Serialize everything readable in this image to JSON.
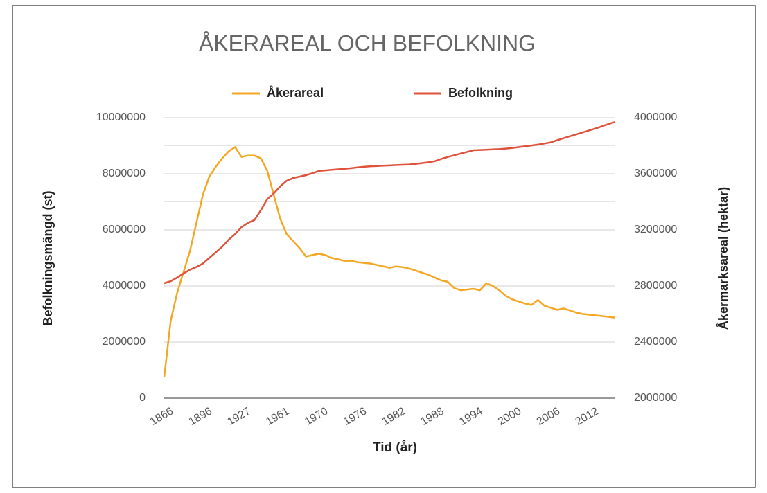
{
  "chart_data": {
    "type": "line",
    "title": "ÅKERAREAL OCH BEFOLKNING",
    "x_label": "Tid (år)",
    "y_label": "Befolkningsmängd (st)",
    "y2_label": "Åkermarksareal (hektar)",
    "legend": "top",
    "grid": true,
    "categories": [
      "1866",
      null,
      null,
      null,
      null,
      null,
      "1896",
      null,
      null,
      null,
      null,
      null,
      "1927",
      null,
      null,
      null,
      null,
      null,
      "1961",
      null,
      null,
      null,
      null,
      null,
      "1970",
      null,
      null,
      null,
      null,
      null,
      "1976",
      null,
      null,
      null,
      null,
      null,
      "1982",
      null,
      null,
      null,
      null,
      null,
      "1988",
      null,
      null,
      null,
      null,
      null,
      "1994",
      null,
      null,
      null,
      null,
      null,
      "2000",
      null,
      null,
      null,
      null,
      null,
      "2006",
      null,
      null,
      null,
      null,
      null,
      "2012",
      null,
      null,
      null,
      null
    ],
    "ylim": [
      0,
      10000000
    ],
    "yticks": [
      0,
      2000000,
      4000000,
      6000000,
      8000000,
      10000000
    ],
    "y2lim": [
      2000000,
      4000000
    ],
    "y2ticks": [
      2000000,
      2400000,
      2800000,
      3200000,
      3600000,
      4000000
    ],
    "series": [
      {
        "name": "Åkerareal",
        "color": "#f5a623",
        "axis": "y2",
        "values": [
          2150000,
          2550000,
          2750000,
          2900000,
          3050000,
          3250000,
          3450000,
          3580000,
          3650000,
          3710000,
          3760000,
          3790000,
          3720000,
          3730000,
          3730000,
          3710000,
          3620000,
          3450000,
          3280000,
          3170000,
          3120000,
          3070000,
          3010000,
          3020000,
          3030000,
          3020000,
          3000000,
          2990000,
          2980000,
          2980000,
          2970000,
          2965000,
          2960000,
          2950000,
          2940000,
          2930000,
          2940000,
          2935000,
          2925000,
          2910000,
          2895000,
          2880000,
          2860000,
          2840000,
          2830000,
          2785000,
          2770000,
          2775000,
          2780000,
          2770000,
          2820000,
          2800000,
          2770000,
          2730000,
          2705000,
          2690000,
          2675000,
          2665000,
          2700000,
          2660000,
          2645000,
          2630000,
          2640000,
          2625000,
          2610000,
          2600000,
          2595000,
          2590000,
          2585000,
          2580000,
          2575000
        ]
      },
      {
        "name": "Befolkning",
        "color": "#e0513a",
        "values": [
          4100000,
          4170000,
          4300000,
          4450000,
          4580000,
          4680000,
          4800000,
          5000000,
          5200000,
          5400000,
          5650000,
          5850000,
          6100000,
          6250000,
          6350000,
          6700000,
          7100000,
          7300000,
          7550000,
          7750000,
          7850000,
          7900000,
          7950000,
          8020000,
          8100000,
          8120000,
          8140000,
          8160000,
          8180000,
          8200000,
          8230000,
          8250000,
          8270000,
          8280000,
          8290000,
          8300000,
          8310000,
          8320000,
          8330000,
          8350000,
          8380000,
          8410000,
          8450000,
          8530000,
          8600000,
          8660000,
          8720000,
          8780000,
          8840000,
          8850000,
          8860000,
          8870000,
          8880000,
          8900000,
          8920000,
          8950000,
          8980000,
          9010000,
          9040000,
          9080000,
          9120000,
          9200000,
          9270000,
          9340000,
          9410000,
          9480000,
          9550000,
          9620000,
          9700000,
          9780000,
          9850000
        ]
      }
    ]
  }
}
